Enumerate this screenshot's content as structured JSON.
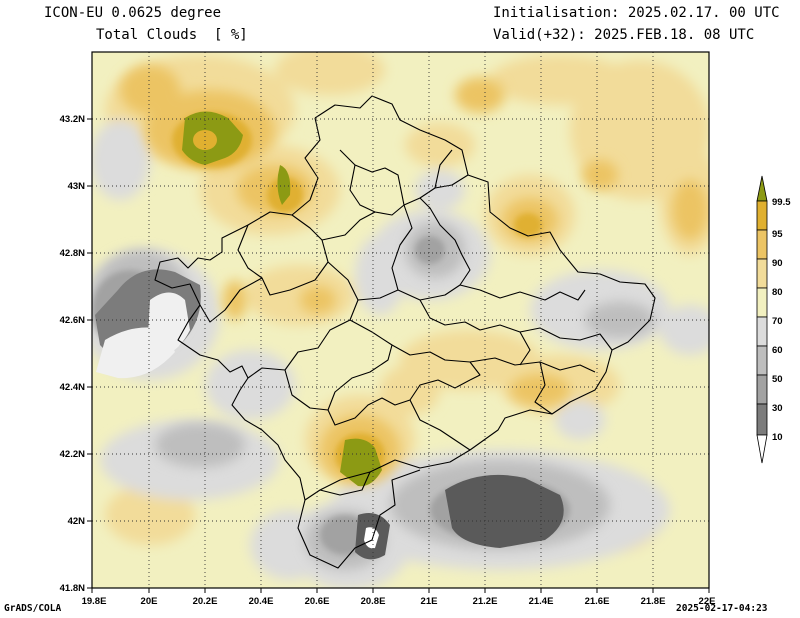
{
  "header": {
    "model": "ICON-EU 0.0625 degree",
    "variable": "Total Clouds  [ %]",
    "init": "Initialisation: 2025.02.17. 00 UTC",
    "valid": "Valid(+32): 2025.FEB.18. 08 UTC"
  },
  "footer": {
    "credit": "GrADS/COLA",
    "timestamp": "2025-02-17-04:23"
  },
  "axes": {
    "lat_ticks": [
      "43.2N",
      "43N",
      "42.8N",
      "42.6N",
      "42.4N",
      "42.2N",
      "42N",
      "41.8N"
    ],
    "lon_ticks": [
      "19.8E",
      "20E",
      "20.2E",
      "20.4E",
      "20.6E",
      "20.8E",
      "21E",
      "21.2E",
      "21.4E",
      "21.6E",
      "21.8E",
      "22E"
    ],
    "lat_range": [
      41.8,
      43.4
    ],
    "lon_range": [
      19.8,
      22.0
    ],
    "grid": "dotted"
  },
  "colorbar": {
    "labels": [
      "99.5",
      "95",
      "90",
      "80",
      "70",
      "60",
      "50",
      "30",
      "10"
    ],
    "colors": [
      "#8c9a14",
      "#e0b030",
      "#ecc464",
      "#f2dc9a",
      "#f2f0c0",
      "#dcdcdc",
      "#bebebe",
      "#a2a2a2",
      "#7c7c7c",
      "#5a5a5a",
      "#ffffff"
    ],
    "unit": "%"
  }
}
